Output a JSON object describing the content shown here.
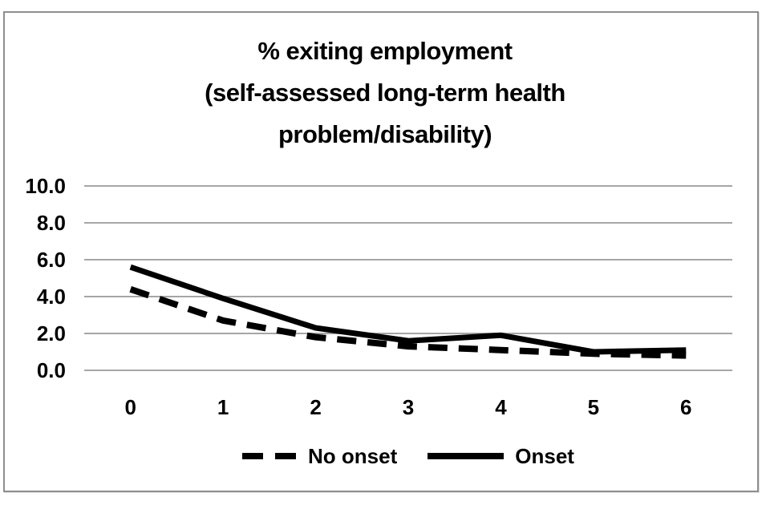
{
  "chart_data": {
    "type": "line",
    "title": "% exiting employment (self-assessed long-term health problem/disability)",
    "title_display": "% exiting employment\n(self-assessed long-term health\nproblem/disability)",
    "x": [
      0,
      1,
      2,
      3,
      4,
      5,
      6
    ],
    "x_tick_labels": [
      "0",
      "1",
      "2",
      "3",
      "4",
      "5",
      "6"
    ],
    "y_tick_labels": [
      "0.0",
      "2.0",
      "4.0",
      "6.0",
      "8.0",
      "10.0"
    ],
    "ylim": [
      0,
      10
    ],
    "ytick_step": 2,
    "xlabel": "",
    "ylabel": "",
    "grid": true,
    "legend_position": "bottom",
    "series": [
      {
        "name": "No onset",
        "dash": "dashed",
        "values": [
          4.4,
          2.7,
          1.8,
          1.3,
          1.1,
          0.9,
          0.8
        ]
      },
      {
        "name": "Onset",
        "dash": "solid",
        "values": [
          5.6,
          3.9,
          2.3,
          1.6,
          1.9,
          1.0,
          1.1
        ]
      }
    ],
    "colors": {
      "series": "#000000",
      "grid": "#a6a6a6",
      "text": "#000000",
      "frame_border": "#8e8e8e",
      "background": "#ffffff"
    }
  }
}
